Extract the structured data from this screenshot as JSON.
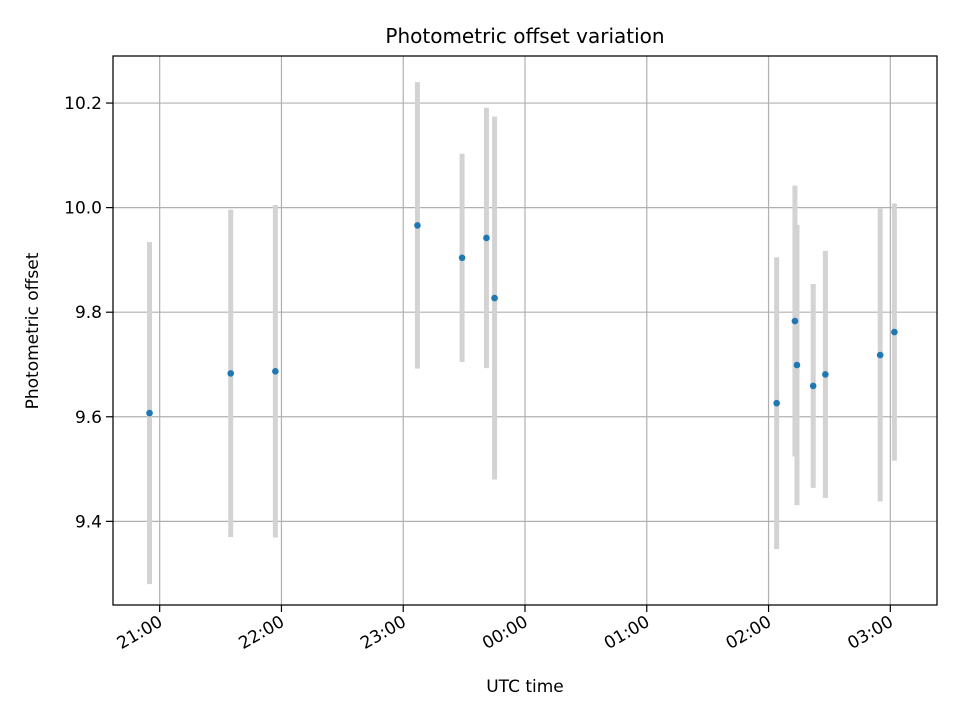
{
  "chart_data": {
    "type": "scatter",
    "title": "Photometric offset variation",
    "xlabel": "UTC time",
    "ylabel": "Photometric offset",
    "x_tick_labels": [
      "21:00",
      "22:00",
      "23:00",
      "00:00",
      "01:00",
      "02:00",
      "03:00"
    ],
    "x_tick_times": [
      "2000-01-01T21:00",
      "2000-01-01T22:00",
      "2000-01-01T23:00",
      "2000-01-02T00:00",
      "2000-01-02T01:00",
      "2000-01-02T02:00",
      "2000-01-02T03:00"
    ],
    "xlim": [
      "2000-01-01T20:37",
      "2000-01-02T03:23"
    ],
    "y_ticks": [
      9.4,
      9.6,
      9.8,
      10.0,
      10.2
    ],
    "y_tick_labels": [
      "9.4",
      "9.6",
      "9.8",
      "10.0",
      "10.2"
    ],
    "ylim": [
      9.24,
      10.29
    ],
    "grid": true,
    "series": [
      {
        "marker_color": "#1f77b4",
        "errorbar_color": "#d3d3d3",
        "points": [
          {
            "t": "2000-01-01T20:55",
            "y": 9.607,
            "err": 0.327
          },
          {
            "t": "2000-01-01T21:35",
            "y": 9.683,
            "err": 0.313
          },
          {
            "t": "2000-01-01T21:57",
            "y": 9.687,
            "err": 0.318
          },
          {
            "t": "2000-01-01T23:07",
            "y": 9.966,
            "err": 0.274
          },
          {
            "t": "2000-01-01T23:29",
            "y": 9.904,
            "err": 0.199
          },
          {
            "t": "2000-01-01T23:41",
            "y": 9.942,
            "err": 0.249
          },
          {
            "t": "2000-01-01T23:45",
            "y": 9.827,
            "err": 0.347
          },
          {
            "t": "2000-01-02T02:04",
            "y": 9.626,
            "err": 0.279
          },
          {
            "t": "2000-01-02T02:13",
            "y": 9.783,
            "err": 0.259
          },
          {
            "t": "2000-01-02T02:14",
            "y": 9.699,
            "err": 0.268
          },
          {
            "t": "2000-01-02T02:22",
            "y": 9.659,
            "err": 0.195
          },
          {
            "t": "2000-01-02T02:28",
            "y": 9.681,
            "err": 0.236
          },
          {
            "t": "2000-01-02T02:55",
            "y": 9.718,
            "err": 0.28
          },
          {
            "t": "2000-01-02T03:02",
            "y": 9.762,
            "err": 0.246
          }
        ]
      }
    ]
  }
}
